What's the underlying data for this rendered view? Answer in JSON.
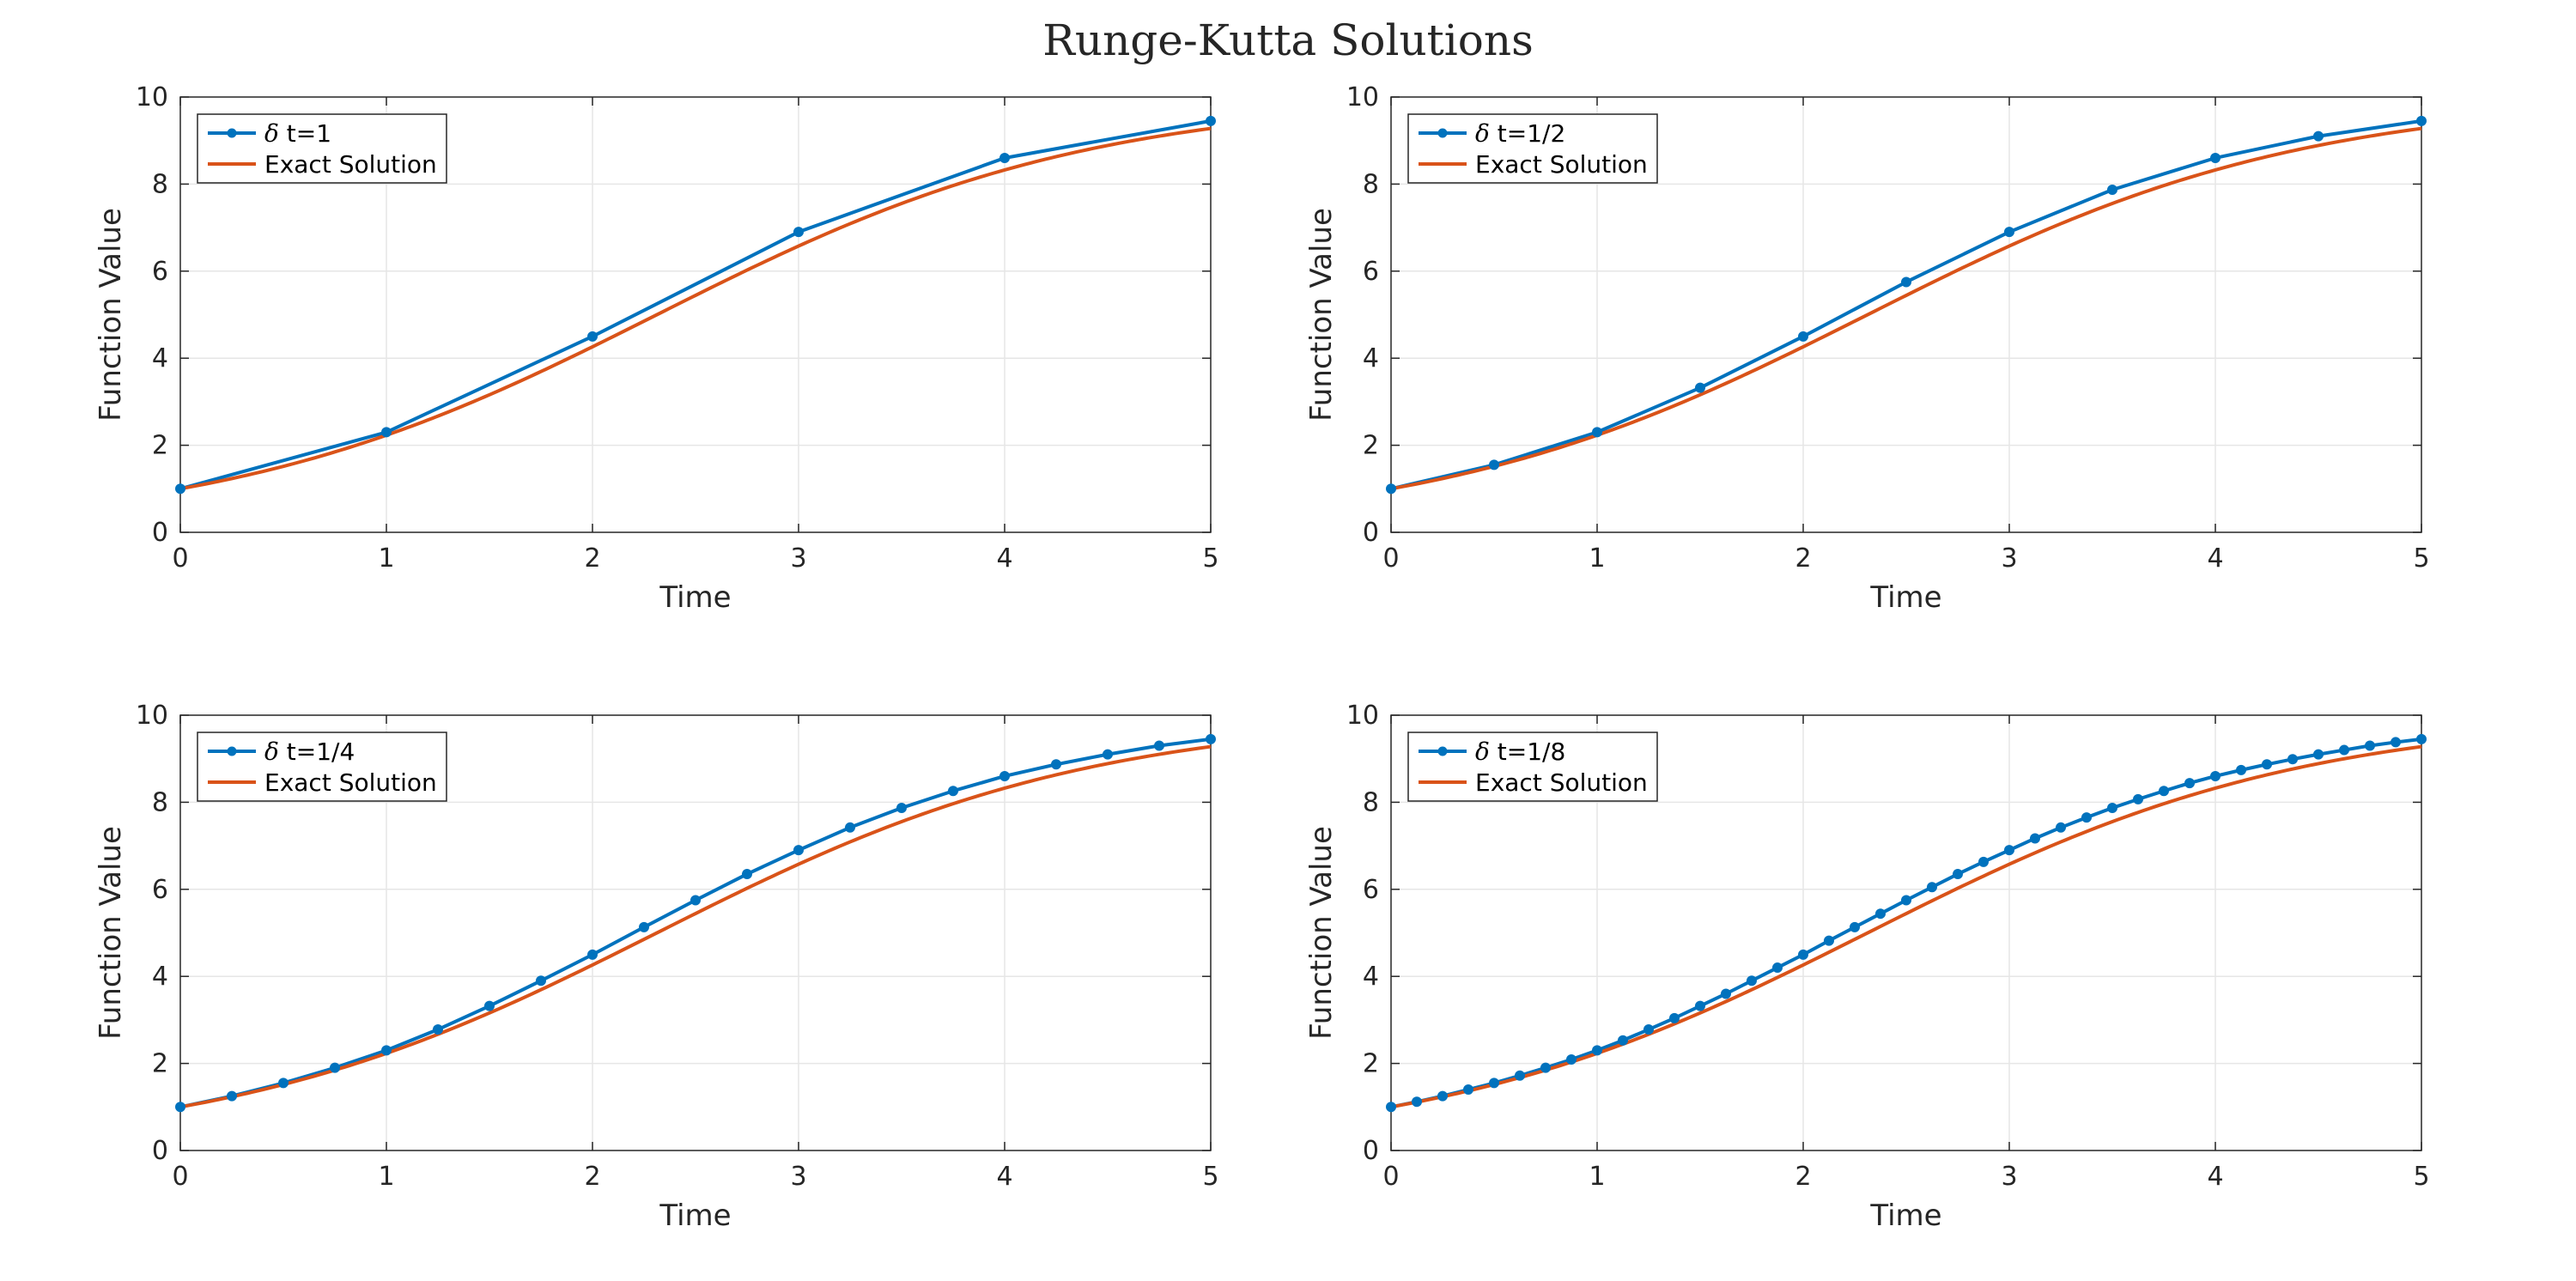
{
  "figure": {
    "title": "Runge-Kutta Solutions"
  },
  "colors": {
    "approx": "#0072BD",
    "exact": "#D95319",
    "axis": "#262626",
    "grid": "#e6e6e6"
  },
  "chart_data": [
    {
      "type": "line",
      "xlabel": "Time",
      "ylabel": "Function Value",
      "xlim": [
        0,
        5
      ],
      "ylim": [
        0,
        10
      ],
      "xticks": [
        0,
        1,
        2,
        3,
        4,
        5
      ],
      "yticks": [
        0,
        2,
        4,
        6,
        8,
        10
      ],
      "grid": true,
      "legend_position": "top-left",
      "series": [
        {
          "name": "δ t=1",
          "legend_prefix": "δ",
          "legend_rest": " t=1",
          "marker": "circle",
          "x": [
            0,
            1,
            2,
            3,
            4,
            5
          ],
          "y": [
            1.0,
            2.3,
            4.5,
            6.9,
            8.6,
            9.45
          ]
        },
        {
          "name": "Exact Solution",
          "legend_prefix": "",
          "legend_rest": "Exact Solution",
          "marker": "none",
          "curve": "exact"
        }
      ]
    },
    {
      "type": "line",
      "xlabel": "Time",
      "ylabel": "Function Value",
      "xlim": [
        0,
        5
      ],
      "ylim": [
        0,
        10
      ],
      "xticks": [
        0,
        1,
        2,
        3,
        4,
        5
      ],
      "yticks": [
        0,
        2,
        4,
        6,
        8,
        10
      ],
      "grid": true,
      "legend_position": "top-left",
      "series": [
        {
          "name": "δ t=1/2",
          "legend_prefix": "δ",
          "legend_rest": " t=1/2",
          "marker": "circle",
          "x": [
            0,
            0.5,
            1,
            1.5,
            2,
            2.5,
            3,
            3.5,
            4,
            4.5,
            5
          ],
          "y": [
            1.0,
            1.55,
            2.3,
            3.32,
            4.5,
            5.75,
            6.9,
            7.87,
            8.6,
            9.1,
            9.45
          ]
        },
        {
          "name": "Exact Solution",
          "legend_prefix": "",
          "legend_rest": "Exact Solution",
          "marker": "none",
          "curve": "exact"
        }
      ]
    },
    {
      "type": "line",
      "xlabel": "Time",
      "ylabel": "Function Value",
      "xlim": [
        0,
        5
      ],
      "ylim": [
        0,
        10
      ],
      "xticks": [
        0,
        1,
        2,
        3,
        4,
        5
      ],
      "yticks": [
        0,
        2,
        4,
        6,
        8,
        10
      ],
      "grid": true,
      "legend_position": "top-left",
      "series": [
        {
          "name": "δ t=1/4",
          "legend_prefix": "δ",
          "legend_rest": " t=1/4",
          "marker": "circle",
          "x": [
            0,
            0.25,
            0.5,
            0.75,
            1,
            1.25,
            1.5,
            1.75,
            2,
            2.25,
            2.5,
            2.75,
            3,
            3.25,
            3.5,
            3.75,
            4,
            4.25,
            4.5,
            4.75,
            5
          ],
          "y": [
            1.0,
            1.25,
            1.55,
            1.9,
            2.3,
            2.78,
            3.32,
            3.9,
            4.5,
            5.13,
            5.75,
            6.35,
            6.9,
            7.42,
            7.87,
            8.26,
            8.6,
            8.87,
            9.1,
            9.3,
            9.45
          ]
        },
        {
          "name": "Exact Solution",
          "legend_prefix": "",
          "legend_rest": "Exact Solution",
          "marker": "none",
          "curve": "exact"
        }
      ]
    },
    {
      "type": "line",
      "xlabel": "Time",
      "ylabel": "Function Value",
      "xlim": [
        0,
        5
      ],
      "ylim": [
        0,
        10
      ],
      "xticks": [
        0,
        1,
        2,
        3,
        4,
        5
      ],
      "yticks": [
        0,
        2,
        4,
        6,
        8,
        10
      ],
      "grid": true,
      "legend_position": "top-left",
      "series": [
        {
          "name": "δ t=1/8",
          "legend_prefix": "δ",
          "legend_rest": " t=1/8",
          "marker": "circle",
          "x": [
            0,
            0.125,
            0.25,
            0.375,
            0.5,
            0.625,
            0.75,
            0.875,
            1,
            1.125,
            1.25,
            1.375,
            1.5,
            1.625,
            1.75,
            1.875,
            2,
            2.125,
            2.25,
            2.375,
            2.5,
            2.625,
            2.75,
            2.875,
            3,
            3.125,
            3.25,
            3.375,
            3.5,
            3.625,
            3.75,
            3.875,
            4,
            4.125,
            4.25,
            4.375,
            4.5,
            4.625,
            4.75,
            4.875,
            5
          ],
          "y": [
            1.0,
            1.12,
            1.25,
            1.4,
            1.55,
            1.72,
            1.9,
            2.09,
            2.3,
            2.53,
            2.78,
            3.04,
            3.32,
            3.6,
            3.9,
            4.2,
            4.5,
            4.82,
            5.13,
            5.44,
            5.75,
            6.05,
            6.35,
            6.63,
            6.9,
            7.17,
            7.42,
            7.65,
            7.87,
            8.07,
            8.26,
            8.44,
            8.6,
            8.74,
            8.87,
            8.99,
            9.1,
            9.2,
            9.3,
            9.38,
            9.45
          ]
        },
        {
          "name": "Exact Solution",
          "legend_prefix": "",
          "legend_rest": "Exact Solution",
          "marker": "none",
          "curve": "exact"
        }
      ]
    }
  ]
}
